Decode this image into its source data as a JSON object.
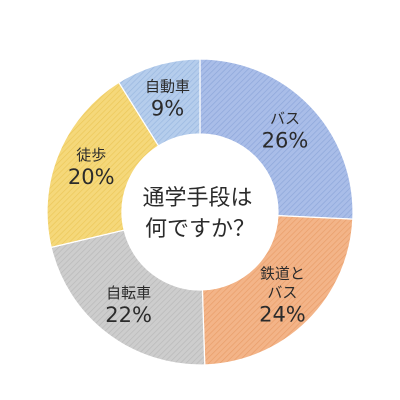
{
  "chart_data": {
    "type": "pie",
    "title_lines": [
      "通学手段は",
      "何ですか？"
    ],
    "categories": [
      "バス",
      "鉄道とバス",
      "自転車",
      "徒歩",
      "自動車"
    ],
    "label_lines": [
      [
        "バス"
      ],
      [
        "鉄道と",
        "バス"
      ],
      [
        "自転車"
      ],
      [
        "徒歩"
      ],
      [
        "自動車"
      ]
    ],
    "values": [
      26,
      24,
      22,
      20,
      9
    ],
    "value_labels": [
      "26%",
      "24%",
      "22%",
      "20%",
      "9%"
    ],
    "unit": "%",
    "colors": [
      "#a9bde8",
      "#f3b488",
      "#cdcdcd",
      "#f5d87a",
      "#b5cdec"
    ],
    "hatch_colors": [
      "#8ea7da",
      "#e99e6a",
      "#b9b9b9",
      "#ecc85a",
      "#9ab8e0"
    ],
    "start_angle_deg": 0,
    "direction": "clockwise",
    "legend": "none"
  }
}
